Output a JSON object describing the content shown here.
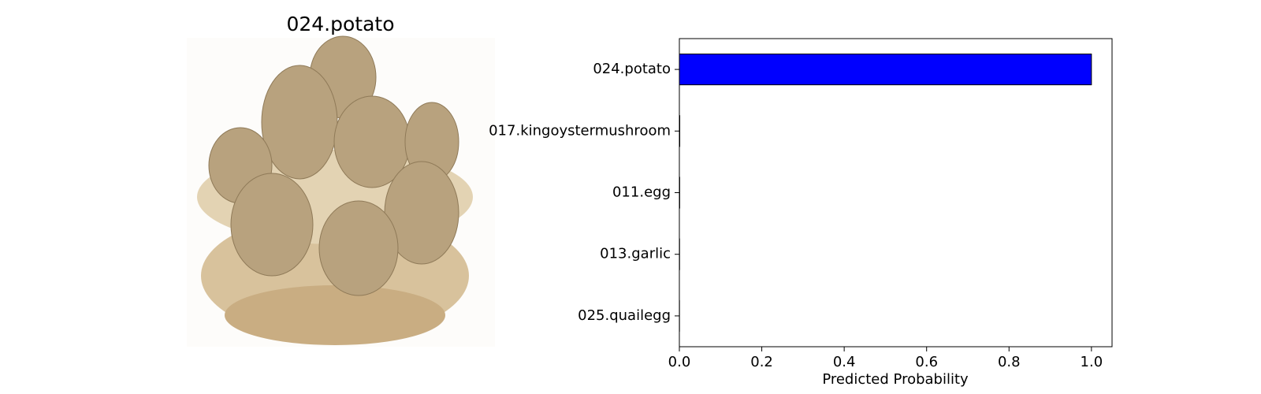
{
  "image_panel": {
    "title": "024.potato"
  },
  "chart_data": {
    "type": "barh",
    "categories": [
      "024.potato",
      "017.kingoystermushroom",
      "011.egg",
      "013.garlic",
      "025.quailegg"
    ],
    "values": [
      1.0,
      0.001,
      0.0008,
      0.0005,
      0.0003
    ],
    "color": "#0000ff",
    "xlabel": "Predicted Probability",
    "xlim": [
      0,
      1.05
    ],
    "xticks": [
      {
        "value": 0,
        "label": "0.0"
      },
      {
        "value": 0.2,
        "label": "0.2"
      },
      {
        "value": 0.4,
        "label": "0.4"
      },
      {
        "value": 0.6,
        "label": "0.6"
      },
      {
        "value": 0.8,
        "label": "0.8"
      },
      {
        "value": 1,
        "label": "1.0"
      }
    ],
    "grid": false
  }
}
